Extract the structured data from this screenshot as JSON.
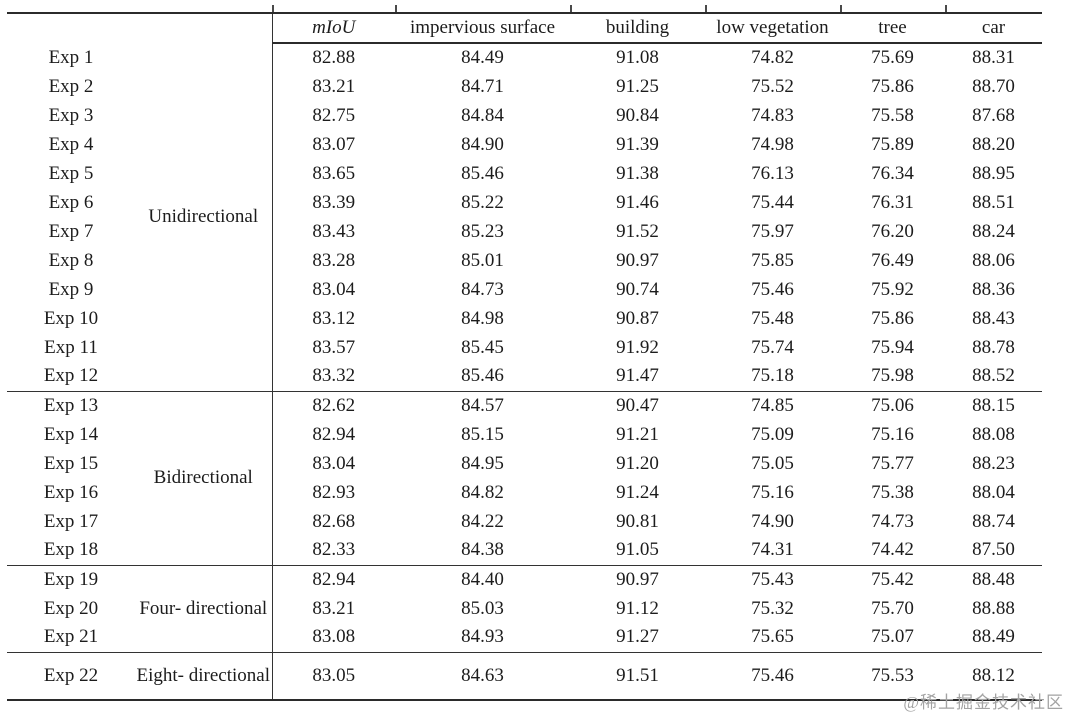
{
  "table": {
    "columns": [
      "mIoU",
      "impervious surface",
      "building",
      "low vegetation",
      "tree",
      "car"
    ],
    "groups": [
      {
        "label": "Unidirectional",
        "rows": [
          {
            "exp": "Exp 1",
            "values": [
              "82.88",
              "84.49",
              "91.08",
              "74.82",
              "75.69",
              "88.31"
            ]
          },
          {
            "exp": "Exp 2",
            "values": [
              "83.21",
              "84.71",
              "91.25",
              "75.52",
              "75.86",
              "88.70"
            ]
          },
          {
            "exp": "Exp 3",
            "values": [
              "82.75",
              "84.84",
              "90.84",
              "74.83",
              "75.58",
              "87.68"
            ]
          },
          {
            "exp": "Exp 4",
            "values": [
              "83.07",
              "84.90",
              "91.39",
              "74.98",
              "75.89",
              "88.20"
            ]
          },
          {
            "exp": "Exp 5",
            "values": [
              "83.65",
              "85.46",
              "91.38",
              "76.13",
              "76.34",
              "88.95"
            ]
          },
          {
            "exp": "Exp 6",
            "values": [
              "83.39",
              "85.22",
              "91.46",
              "75.44",
              "76.31",
              "88.51"
            ]
          },
          {
            "exp": "Exp 7",
            "values": [
              "83.43",
              "85.23",
              "91.52",
              "75.97",
              "76.20",
              "88.24"
            ]
          },
          {
            "exp": "Exp 8",
            "values": [
              "83.28",
              "85.01",
              "90.97",
              "75.85",
              "76.49",
              "88.06"
            ]
          },
          {
            "exp": "Exp 9",
            "values": [
              "83.04",
              "84.73",
              "90.74",
              "75.46",
              "75.92",
              "88.36"
            ]
          },
          {
            "exp": "Exp 10",
            "values": [
              "83.12",
              "84.98",
              "90.87",
              "75.48",
              "75.86",
              "88.43"
            ]
          },
          {
            "exp": "Exp 11",
            "values": [
              "83.57",
              "85.45",
              "91.92",
              "75.74",
              "75.94",
              "88.78"
            ]
          },
          {
            "exp": "Exp 12",
            "values": [
              "83.32",
              "85.46",
              "91.47",
              "75.18",
              "75.98",
              "88.52"
            ]
          }
        ]
      },
      {
        "label": "Bidirectional",
        "rows": [
          {
            "exp": "Exp 13",
            "values": [
              "82.62",
              "84.57",
              "90.47",
              "74.85",
              "75.06",
              "88.15"
            ]
          },
          {
            "exp": "Exp 14",
            "values": [
              "82.94",
              "85.15",
              "91.21",
              "75.09",
              "75.16",
              "88.08"
            ]
          },
          {
            "exp": "Exp 15",
            "values": [
              "83.04",
              "84.95",
              "91.20",
              "75.05",
              "75.77",
              "88.23"
            ]
          },
          {
            "exp": "Exp 16",
            "values": [
              "82.93",
              "84.82",
              "91.24",
              "75.16",
              "75.38",
              "88.04"
            ]
          },
          {
            "exp": "Exp 17",
            "values": [
              "82.68",
              "84.22",
              "90.81",
              "74.90",
              "74.73",
              "88.74"
            ]
          },
          {
            "exp": "Exp 18",
            "values": [
              "82.33",
              "84.38",
              "91.05",
              "74.31",
              "74.42",
              "87.50"
            ]
          }
        ]
      },
      {
        "label": "Four-\ndirectional",
        "rows": [
          {
            "exp": "Exp 19",
            "values": [
              "82.94",
              "84.40",
              "90.97",
              "75.43",
              "75.42",
              "88.48"
            ]
          },
          {
            "exp": "Exp 20",
            "values": [
              "83.21",
              "85.03",
              "91.12",
              "75.32",
              "75.70",
              "88.88"
            ]
          },
          {
            "exp": "Exp 21",
            "values": [
              "83.08",
              "84.93",
              "91.27",
              "75.65",
              "75.07",
              "88.49"
            ]
          }
        ]
      },
      {
        "label": "Eight-\ndirectional",
        "rows": [
          {
            "exp": "Exp 22",
            "values": [
              "83.05",
              "84.63",
              "91.51",
              "75.46",
              "75.53",
              "88.12"
            ]
          }
        ]
      }
    ]
  },
  "watermark": "@稀土掘金技术社区",
  "colors": {
    "border": "#2b2b2b",
    "text": "#1c1c1c",
    "watermark": "#a3a3a3",
    "background": "#ffffff"
  }
}
